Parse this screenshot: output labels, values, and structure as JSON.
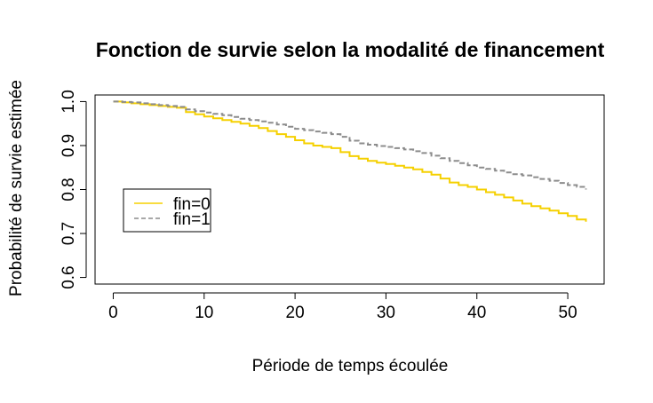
{
  "chart_data": {
    "type": "line",
    "title": "Fonction de survie selon la modalité de financement",
    "xlabel": "Période de temps écoulée",
    "ylabel": "Probabilité de survie estimée",
    "xlim": [
      -2,
      54
    ],
    "ylim": [
      0.585,
      1.015
    ],
    "xticks": [
      0,
      10,
      20,
      30,
      40,
      50
    ],
    "yticks": [
      0.6,
      0.7,
      0.8,
      0.9,
      1.0
    ],
    "xtick_labels": [
      "0",
      "10",
      "20",
      "30",
      "40",
      "50"
    ],
    "ytick_labels": [
      "0.6",
      "0.7",
      "0.8",
      "0.9",
      "1.0"
    ],
    "step": true,
    "grid": false,
    "legend_position": "left-center",
    "series": [
      {
        "name": "fin=0",
        "color": "#f5d000",
        "dash": "solid",
        "x": [
          0,
          1,
          2,
          3,
          4,
          5,
          6,
          7,
          8,
          9,
          10,
          11,
          12,
          13,
          14,
          15,
          16,
          17,
          18,
          19,
          20,
          21,
          22,
          23,
          24,
          25,
          26,
          27,
          28,
          29,
          30,
          31,
          32,
          33,
          34,
          35,
          36,
          37,
          38,
          39,
          40,
          41,
          42,
          43,
          44,
          45,
          46,
          47,
          48,
          49,
          50,
          51,
          52
        ],
        "y": [
          1.0,
          0.998,
          0.996,
          0.994,
          0.992,
          0.99,
          0.988,
          0.986,
          0.976,
          0.971,
          0.966,
          0.962,
          0.958,
          0.954,
          0.95,
          0.945,
          0.94,
          0.933,
          0.926,
          0.92,
          0.912,
          0.905,
          0.9,
          0.897,
          0.894,
          0.885,
          0.876,
          0.87,
          0.865,
          0.861,
          0.858,
          0.854,
          0.85,
          0.846,
          0.84,
          0.834,
          0.825,
          0.816,
          0.81,
          0.806,
          0.8,
          0.794,
          0.788,
          0.782,
          0.775,
          0.768,
          0.762,
          0.757,
          0.752,
          0.746,
          0.74,
          0.732,
          0.727
        ]
      },
      {
        "name": "fin=1",
        "color": "#8c8c8c",
        "dash": "dashed",
        "x": [
          0,
          1,
          2,
          3,
          4,
          5,
          6,
          7,
          8,
          9,
          10,
          11,
          12,
          13,
          14,
          15,
          16,
          17,
          18,
          19,
          20,
          21,
          22,
          23,
          24,
          25,
          26,
          27,
          28,
          29,
          30,
          31,
          32,
          33,
          34,
          35,
          36,
          37,
          38,
          39,
          40,
          41,
          42,
          43,
          44,
          45,
          46,
          47,
          48,
          49,
          50,
          51,
          52
        ],
        "y": [
          1.0,
          0.999,
          0.998,
          0.996,
          0.994,
          0.992,
          0.99,
          0.988,
          0.982,
          0.978,
          0.975,
          0.972,
          0.969,
          0.965,
          0.961,
          0.958,
          0.955,
          0.952,
          0.948,
          0.943,
          0.938,
          0.935,
          0.932,
          0.929,
          0.926,
          0.92,
          0.911,
          0.905,
          0.902,
          0.899,
          0.897,
          0.894,
          0.891,
          0.887,
          0.883,
          0.877,
          0.871,
          0.865,
          0.86,
          0.855,
          0.85,
          0.847,
          0.843,
          0.839,
          0.835,
          0.832,
          0.828,
          0.824,
          0.82,
          0.815,
          0.81,
          0.806,
          0.8
        ]
      }
    ]
  }
}
